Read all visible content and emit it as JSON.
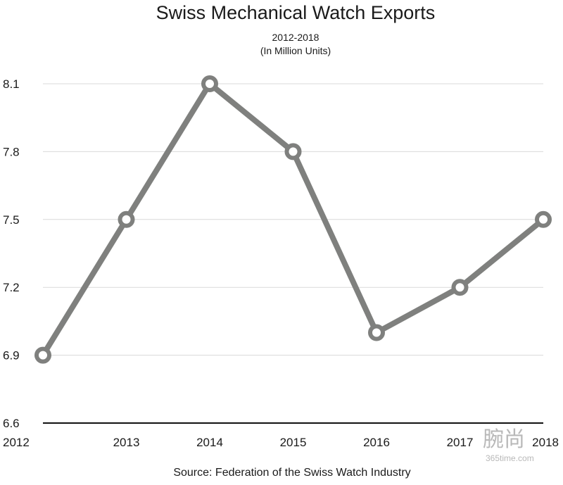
{
  "chart_data": {
    "type": "line",
    "title": "Swiss Mechanical Watch Exports",
    "subtitle_line1": "2012-2018",
    "subtitle_line2": "(In Million Units)",
    "categories": [
      "2012",
      "2013",
      "2014",
      "2015",
      "2016",
      "2017",
      "2018"
    ],
    "series": [
      {
        "values": [
          6.9,
          7.5,
          8.1,
          7.8,
          7.0,
          7.2,
          7.5
        ]
      }
    ],
    "yticks": [
      "6.6",
      "6.9",
      "7.2",
      "7.5",
      "7.8",
      "8.1"
    ],
    "ylim": [
      6.6,
      8.1
    ],
    "grid": true,
    "legend": "none",
    "source": "Source: Federation of the Swiss Watch Industry",
    "colors": {
      "line": "#7f807e",
      "marker_fill": "#ffffff",
      "grid": "#d9d9d9",
      "axis": "#111111"
    }
  },
  "watermark": {
    "logo_text": "腕尚",
    "url": "365time.com"
  }
}
